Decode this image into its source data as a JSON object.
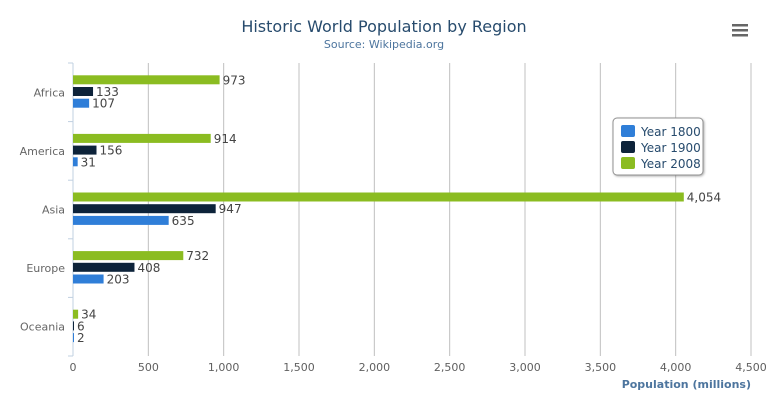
{
  "chart_data": {
    "type": "bar",
    "orientation": "horizontal",
    "title": "Historic World Population by Region",
    "subtitle": "Source: Wikipedia.org",
    "xlabel": "",
    "ylabel": "Population (millions)",
    "categories": [
      "Africa",
      "America",
      "Asia",
      "Europe",
      "Oceania"
    ],
    "series": [
      {
        "name": "Year 1800",
        "color": "#2f7ed8",
        "values": [
          107,
          31,
          635,
          203,
          2
        ]
      },
      {
        "name": "Year 1900",
        "color": "#0d233a",
        "values": [
          133,
          156,
          947,
          408,
          6
        ]
      },
      {
        "name": "Year 2008",
        "color": "#8bbc21",
        "values": [
          973,
          914,
          4054,
          732,
          34
        ]
      }
    ],
    "value_axis": {
      "range": [
        0,
        4500
      ],
      "ticks": [
        0,
        500,
        1000,
        1500,
        2000,
        2500,
        3000,
        3500,
        4000,
        4500
      ],
      "tick_labels": [
        "0",
        "500",
        "1,000",
        "1,500",
        "2,000",
        "2,500",
        "3,000",
        "3,500",
        "4,000",
        "4,500"
      ]
    },
    "grid": true,
    "data_labels": true,
    "legend_placement": "top-right"
  },
  "menu_icon": "hamburger-menu-icon"
}
